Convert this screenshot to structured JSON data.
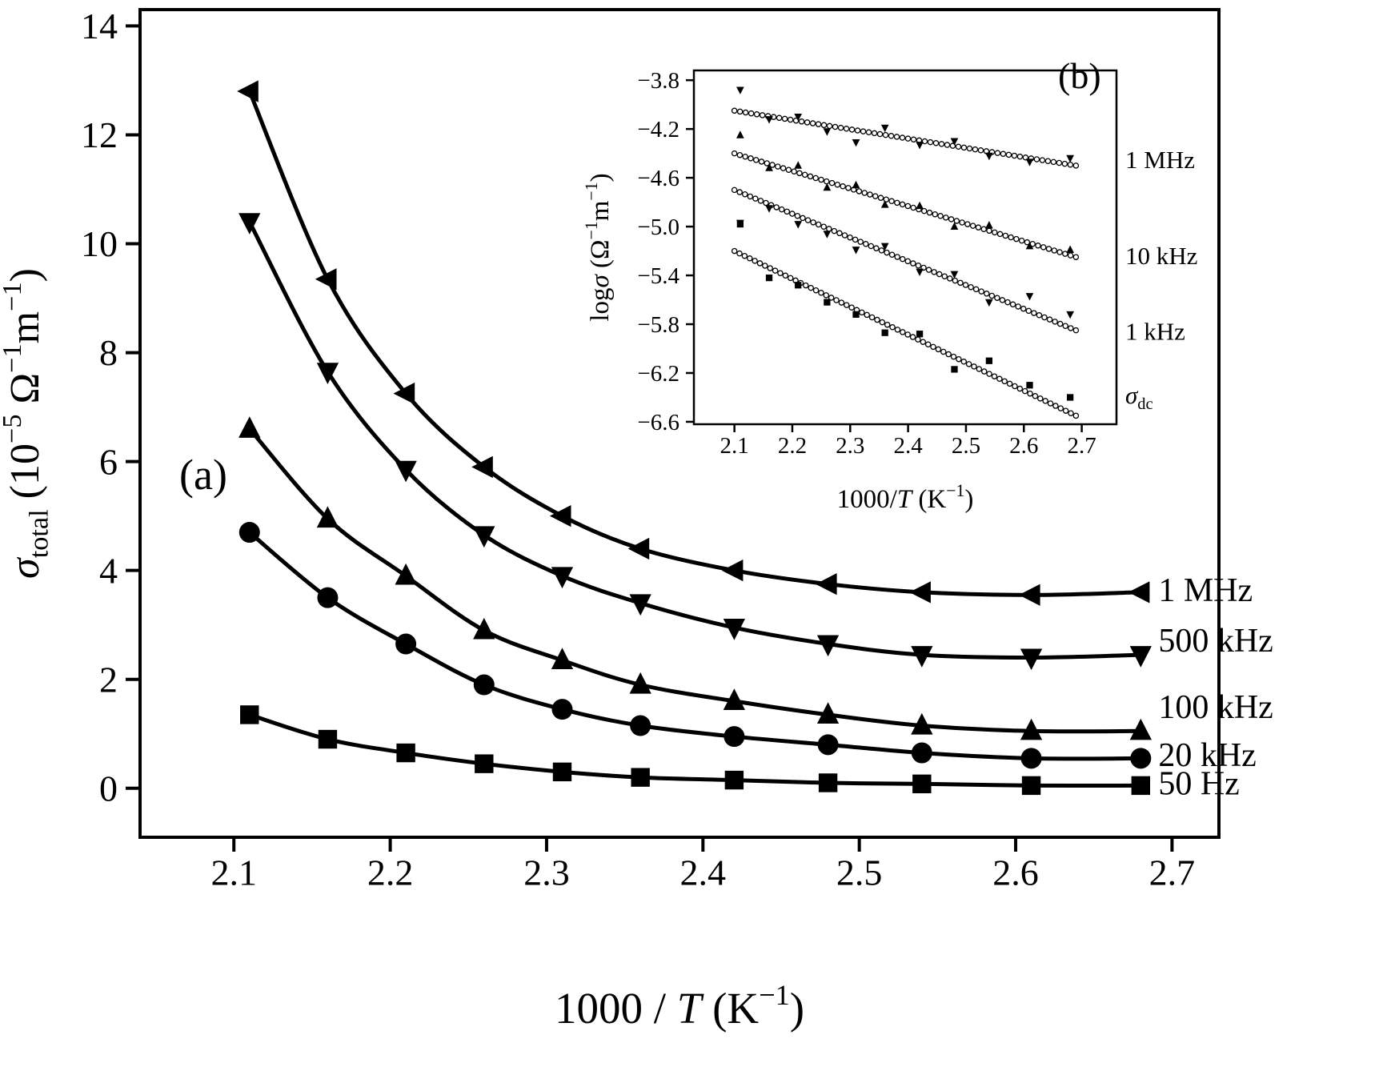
{
  "figure": {
    "background": "#ffffff",
    "ink": "#000000",
    "panel_a_label": "(a)",
    "panel_b_label": "(b)"
  },
  "chart_data": [
    {
      "id": "main",
      "type": "line",
      "panel_label": "(a)",
      "xlabel": "1000 / T (K−1)",
      "ylabel": "σtotal (10−5 Ω−1m−1)",
      "xlabel_parts": [
        {
          "t": "1000 / "
        },
        {
          "t": "T",
          "i": true
        },
        {
          "t": " (K"
        },
        {
          "t": "−1",
          "sup": true
        },
        {
          "t": ")"
        }
      ],
      "ylabel_parts": [
        {
          "t": "σ",
          "i": true
        },
        {
          "t": "total",
          "sub": true
        },
        {
          "t": " (10"
        },
        {
          "t": "−5",
          "sup": true
        },
        {
          "t": " Ω"
        },
        {
          "t": "−1",
          "sup": true
        },
        {
          "t": "m"
        },
        {
          "t": "−1",
          "sup": true
        },
        {
          "t": ")"
        }
      ],
      "xlim": [
        2.04,
        2.73
      ],
      "ylim": [
        -0.9,
        14.3
      ],
      "grid": false,
      "xtick_values": [
        2.1,
        2.2,
        2.3,
        2.4,
        2.5,
        2.6,
        2.7
      ],
      "xtick_labels": [
        "2.1",
        "2.2",
        "2.3",
        "2.4",
        "2.5",
        "2.6",
        "2.7"
      ],
      "ytick_values": [
        0,
        2,
        4,
        6,
        8,
        10,
        12,
        14
      ],
      "ytick_labels": [
        "0",
        "2",
        "4",
        "6",
        "8",
        "10",
        "12",
        "14"
      ],
      "x": [
        2.11,
        2.16,
        2.21,
        2.26,
        2.31,
        2.36,
        2.42,
        2.48,
        2.54,
        2.61,
        2.68
      ],
      "series": [
        {
          "name": "1 MHz",
          "marker": "triangle-left",
          "label_y": 3.65,
          "values": [
            12.8,
            9.35,
            7.25,
            5.9,
            5.0,
            4.4,
            4.0,
            3.75,
            3.6,
            3.55,
            3.6
          ]
        },
        {
          "name": "500 kHz",
          "marker": "triangle-down",
          "label_y": 2.72,
          "values": [
            10.4,
            7.65,
            5.85,
            4.65,
            3.9,
            3.4,
            2.95,
            2.65,
            2.45,
            2.4,
            2.45
          ]
        },
        {
          "name": "100 kHz",
          "marker": "triangle-up",
          "label_y": 1.5,
          "values": [
            6.6,
            4.95,
            3.9,
            2.9,
            2.35,
            1.9,
            1.6,
            1.35,
            1.15,
            1.05,
            1.05
          ]
        },
        {
          "name": "20 kHz",
          "marker": "circle",
          "label_y": 0.62,
          "values": [
            4.7,
            3.5,
            2.65,
            1.9,
            1.45,
            1.15,
            0.95,
            0.8,
            0.65,
            0.55,
            0.55
          ]
        },
        {
          "name": "50 Hz",
          "marker": "square",
          "label_y": 0.1,
          "values": [
            1.35,
            0.9,
            0.65,
            0.45,
            0.3,
            0.2,
            0.15,
            0.1,
            0.08,
            0.05,
            0.05
          ]
        }
      ]
    },
    {
      "id": "inset",
      "type": "scatter",
      "panel_label": "(b)",
      "xlabel": "1000/T (K−1)",
      "ylabel": "logσ (Ω−1m−1)",
      "xlabel_parts": [
        {
          "t": "1000/"
        },
        {
          "t": "T",
          "i": true
        },
        {
          "t": " (K"
        },
        {
          "t": "−1",
          "sup": true
        },
        {
          "t": ")"
        }
      ],
      "ylabel_parts": [
        {
          "t": "log"
        },
        {
          "t": "σ",
          "i": true
        },
        {
          "t": " (Ω"
        },
        {
          "t": "−1",
          "sup": true
        },
        {
          "t": "m"
        },
        {
          "t": "−1",
          "sup": true
        },
        {
          "t": ")"
        }
      ],
      "xlim": [
        2.03,
        2.76
      ],
      "ylim": [
        -6.62,
        -3.72
      ],
      "grid": false,
      "xtick_values": [
        2.1,
        2.2,
        2.3,
        2.4,
        2.5,
        2.6,
        2.7
      ],
      "xtick_labels": [
        "2.1",
        "2.2",
        "2.3",
        "2.4",
        "2.5",
        "2.6",
        "2.7"
      ],
      "ytick_values": [
        -3.8,
        -4.2,
        -4.6,
        -5.0,
        -5.4,
        -5.8,
        -6.2,
        -6.6
      ],
      "ytick_labels": [
        "−3.8",
        "−4.2",
        "−4.6",
        "−5.0",
        "−5.4",
        "−5.8",
        "−6.2",
        "−6.6"
      ],
      "x": [
        2.11,
        2.16,
        2.21,
        2.26,
        2.31,
        2.36,
        2.42,
        2.48,
        2.54,
        2.61,
        2.68
      ],
      "series": [
        {
          "name": "1 MHz",
          "marker": "triangle-down",
          "label_y": -4.45,
          "fit_x": [
            2.1,
            2.69
          ],
          "fit_y": [
            -4.05,
            -4.5
          ],
          "scatter_y": [
            -3.88,
            -4.12,
            -4.1,
            -4.22,
            -4.31,
            -4.19,
            -4.33,
            -4.3,
            -4.42,
            -4.47,
            -4.44
          ]
        },
        {
          "name": "10 kHz",
          "marker": "triangle-up",
          "label_y": -5.24,
          "fit_x": [
            2.1,
            2.69
          ],
          "fit_y": [
            -4.4,
            -5.25
          ],
          "scatter_y": [
            -4.25,
            -4.52,
            -4.5,
            -4.68,
            -4.66,
            -4.82,
            -4.83,
            -5.0,
            -4.99,
            -5.16,
            -5.19
          ]
        },
        {
          "name": "1 kHz",
          "marker": "triangle-down",
          "label_y": -5.86,
          "fit_x": [
            2.1,
            2.69
          ],
          "fit_y": [
            -4.7,
            -5.85
          ],
          "scatter_y": [
            -4.97,
            -4.85,
            -4.98,
            -5.06,
            -5.19,
            -5.16,
            -5.37,
            -5.39,
            -5.62,
            -5.57,
            -5.72
          ]
        },
        {
          "name": "σ_dc",
          "marker": "square",
          "label_y": -6.38,
          "label_parts": [
            {
              "t": "σ",
              "i": true
            },
            {
              "t": "dc",
              "sub": true
            }
          ],
          "fit_x": [
            2.1,
            2.69
          ],
          "fit_y": [
            -5.2,
            -6.55
          ],
          "scatter_y": [
            -4.98,
            -5.42,
            -5.48,
            -5.62,
            -5.72,
            -5.87,
            -5.88,
            -6.17,
            -6.1,
            -6.3,
            -6.4
          ]
        }
      ]
    }
  ]
}
